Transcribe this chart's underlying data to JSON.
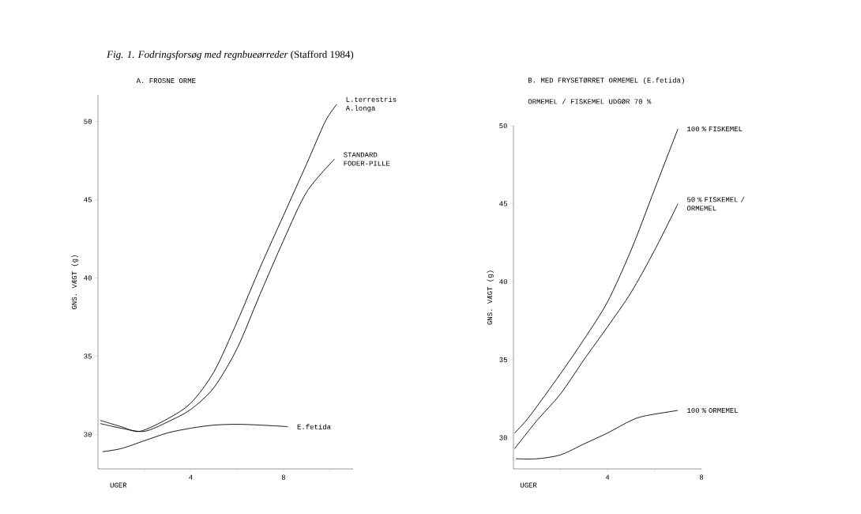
{
  "chart_data": [
    {
      "type": "line",
      "title": "*Fig. 1. Fodringsforsøg med regnbueørreder* (Stafford 1984)",
      "subtitle": "A.  FROSNE ORME",
      "xlabel": "UGER",
      "ylabel": "GNS. VÆGT (g)",
      "xlim": [
        0,
        11
      ],
      "ylim": [
        27.8,
        51.7
      ],
      "xticks": [
        {
          "value": 2,
          "label": null
        },
        4,
        {
          "value": 6,
          "label": null
        },
        8,
        {
          "value": 10,
          "label": null
        }
      ],
      "yticks": [
        30,
        35,
        40,
        45,
        50
      ],
      "series": [
        {
          "name": "L.terrestris A.longa",
          "color": "#000000",
          "x": [
            0.1,
            1,
            1.8,
            3,
            4,
            5,
            6,
            7,
            8,
            9,
            9.8,
            10.3
          ],
          "values": [
            30.9,
            30.5,
            30.2,
            31,
            32,
            34,
            37.2,
            40.7,
            44,
            47.3,
            50,
            51.1
          ]
        },
        {
          "name": "STANDARD FODER-PILLE",
          "color": "#000000",
          "x": [
            0.1,
            1,
            2,
            3,
            4,
            5,
            6,
            7,
            8,
            9,
            10.2
          ],
          "values": [
            30.7,
            30.4,
            30.2,
            30.8,
            31.6,
            33,
            35.5,
            39,
            42.4,
            45.5,
            47.6
          ]
        },
        {
          "name": "E.fetida",
          "color": "#000000",
          "x": [
            0.2,
            1,
            2,
            3,
            4,
            5,
            6,
            7,
            8.2
          ],
          "values": [
            28.9,
            29.1,
            29.6,
            30.1,
            30.4,
            30.6,
            30.65,
            30.6,
            30.5
          ]
        }
      ]
    },
    {
      "type": "line",
      "title": "B. MED FRYSETØRRET ORMEMEL (E.fetida)",
      "subtitle": "ORMEMEL / FISKEMEL UDGØR 70 %",
      "xlabel": "UGER",
      "ylabel": "GNS. VÆGT (g)",
      "xlim": [
        0,
        8
      ],
      "ylim": [
        28,
        50
      ],
      "xticks": [
        {
          "value": 2,
          "label": null
        },
        4,
        {
          "value": 6,
          "label": null
        },
        8
      ],
      "yticks": [
        30,
        35,
        40,
        45,
        50
      ],
      "series": [
        {
          "name": "100 % FISKEMEL",
          "color": "#000000",
          "x": [
            0.05,
            0.7,
            2,
            3,
            4,
            5,
            6,
            7
          ],
          "values": [
            30.3,
            31.4,
            34.1,
            36.3,
            38.7,
            42,
            45.9,
            49.8
          ]
        },
        {
          "name": "50 % FISKEMEL / ORMEMEL",
          "color": "#000000",
          "x": [
            0.05,
            1,
            2,
            3,
            4,
            5,
            6,
            7
          ],
          "values": [
            29.3,
            31.1,
            32.8,
            35,
            37.1,
            39.3,
            42,
            45
          ]
        },
        {
          "name": "100 % ORMEMEL",
          "color": "#000000",
          "x": [
            0.1,
            1,
            2,
            3,
            4,
            5,
            5.6,
            7
          ],
          "values": [
            28.65,
            28.65,
            28.9,
            29.6,
            30.3,
            31.1,
            31.4,
            31.75
          ]
        }
      ]
    }
  ]
}
